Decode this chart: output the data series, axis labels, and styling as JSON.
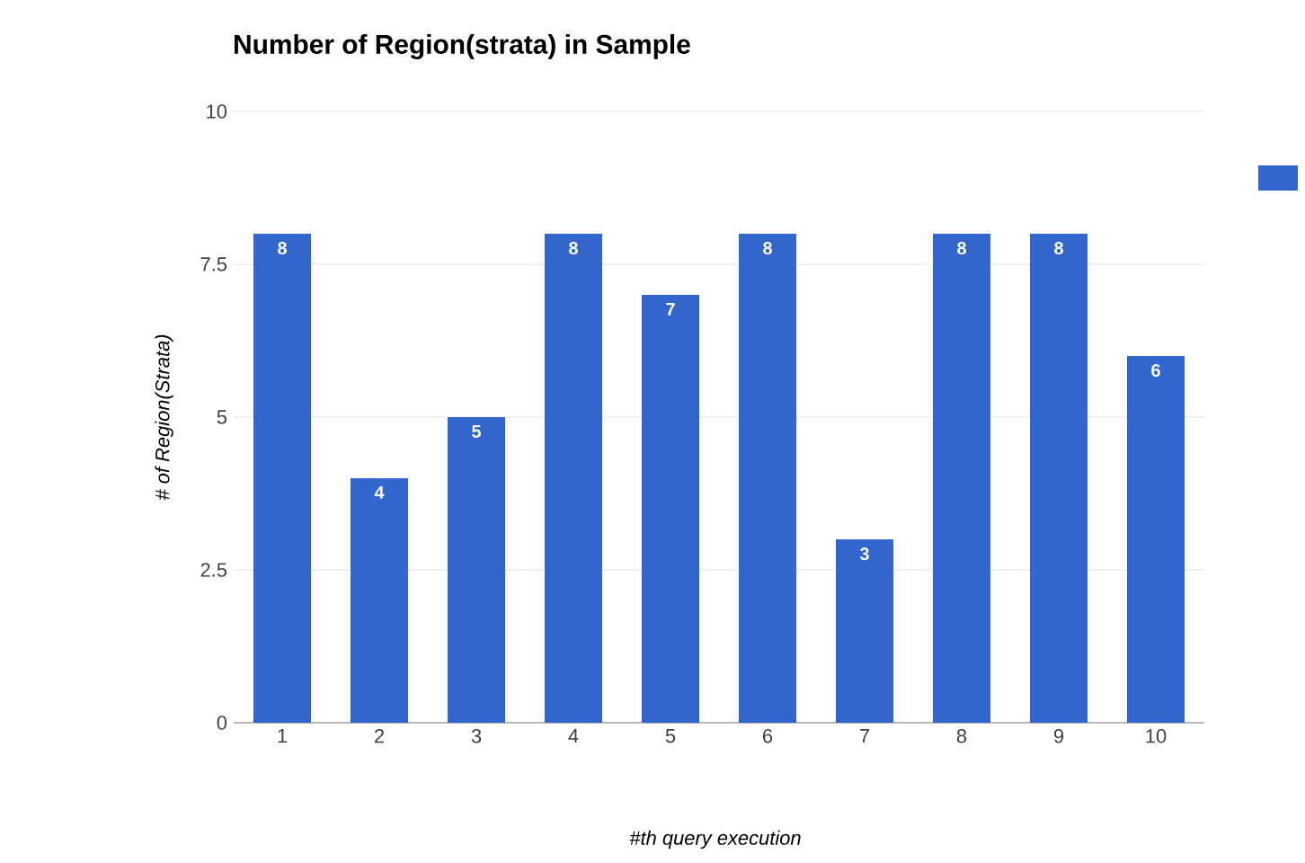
{
  "chart_data": {
    "type": "bar",
    "title": "Number of Region(strata) in Sample",
    "xlabel": "#th query execution",
    "ylabel": "# of Region(Strata)",
    "categories": [
      "1",
      "2",
      "3",
      "4",
      "5",
      "6",
      "7",
      "8",
      "9",
      "10"
    ],
    "values": [
      8,
      4,
      5,
      8,
      7,
      8,
      3,
      8,
      8,
      6
    ],
    "color": "#3366cc",
    "ylim": [
      0,
      10
    ],
    "yticks": [
      0,
      2.5,
      5,
      7.5,
      10
    ],
    "grid": "y",
    "data_labels": true
  }
}
